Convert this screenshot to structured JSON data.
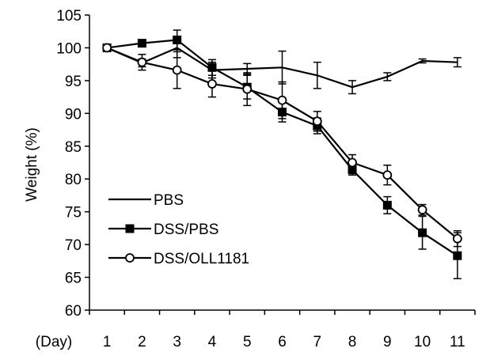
{
  "chart_data": {
    "type": "line",
    "ylabel": "Weight (%)",
    "xlabel": "(Day)",
    "x": [
      1,
      2,
      3,
      4,
      5,
      6,
      7,
      8,
      9,
      10,
      11
    ],
    "xticks": [
      "1",
      "2",
      "3",
      "4",
      "5",
      "6",
      "7",
      "8",
      "9",
      "10",
      "11"
    ],
    "ylim": [
      60,
      105
    ],
    "yticks": [
      "60",
      "65",
      "70",
      "75",
      "80",
      "85",
      "90",
      "95",
      "100",
      "105"
    ],
    "grid": false,
    "legend_position": "bottom-left",
    "series": [
      {
        "name": "PBS",
        "marker": "none",
        "values": [
          100,
          97.7,
          100,
          96.6,
          96.8,
          97.0,
          95.8,
          94.0,
          95.6,
          98.0,
          97.8
        ],
        "errors": [
          0,
          0.6,
          1.5,
          1.2,
          0.8,
          2.5,
          2.0,
          1.0,
          0.6,
          0.3,
          0.7
        ]
      },
      {
        "name": "DSS/PBS",
        "marker": "filled-square",
        "values": [
          100,
          100.7,
          101.2,
          97.0,
          94.0,
          90.2,
          88.1,
          81.4,
          76.0,
          71.8,
          68.3
        ],
        "errors": [
          0,
          0.3,
          1.5,
          1.2,
          1.8,
          1.5,
          1.2,
          0.8,
          1.3,
          2.5,
          3.5
        ]
      },
      {
        "name": "DSS/OLL1181",
        "marker": "open-circle",
        "values": [
          100,
          97.8,
          96.6,
          94.5,
          93.7,
          92.0,
          88.8,
          82.5,
          80.6,
          75.3,
          70.9
        ],
        "errors": [
          0,
          1.2,
          2.8,
          2.0,
          2.5,
          2.8,
          1.5,
          1.2,
          1.5,
          0.8,
          1.2
        ]
      }
    ]
  }
}
